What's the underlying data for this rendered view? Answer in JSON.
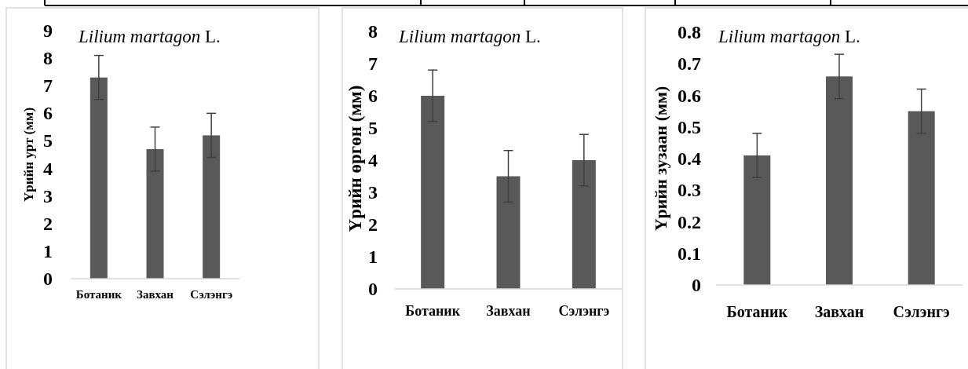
{
  "chart_data": [
    {
      "type": "bar",
      "title": "Lilium martagon L.",
      "ylabel": "Үрийн урт (мм)",
      "categories": [
        "Ботаник",
        "Завхан",
        "Сэлэнгэ"
      ],
      "values": [
        7.3,
        4.7,
        5.2
      ],
      "errors": [
        0.8,
        0.8,
        0.8
      ],
      "color": "#595959",
      "ylim": [
        0,
        9
      ],
      "yticks": [
        0,
        1,
        2,
        3,
        4,
        5,
        6,
        7,
        8,
        9
      ]
    },
    {
      "type": "bar",
      "title": "Lilium martagon L.",
      "ylabel": "Үрийн өргөн (мм)",
      "categories": [
        "Ботаник",
        "Завхан",
        "Сэлэнгэ"
      ],
      "values": [
        6.0,
        3.5,
        4.0
      ],
      "errors": [
        0.8,
        0.8,
        0.8
      ],
      "color": "#595959",
      "ylim": [
        0,
        8
      ],
      "yticks": [
        0,
        1,
        2,
        3,
        4,
        5,
        6,
        7,
        8
      ]
    },
    {
      "type": "bar",
      "title": "Lilium martagon L.",
      "ylabel": "Үрийн зузаан (мм)",
      "categories": [
        "Ботаник",
        "Завхан",
        "Сэлэнгэ"
      ],
      "values": [
        0.41,
        0.66,
        0.55
      ],
      "errors": [
        0.07,
        0.07,
        0.07
      ],
      "color": "#595959",
      "ylim": [
        0,
        0.8
      ],
      "yticks": [
        0,
        0.1,
        0.2,
        0.3,
        0.4,
        0.5,
        0.6,
        0.7,
        0.8
      ]
    }
  ]
}
